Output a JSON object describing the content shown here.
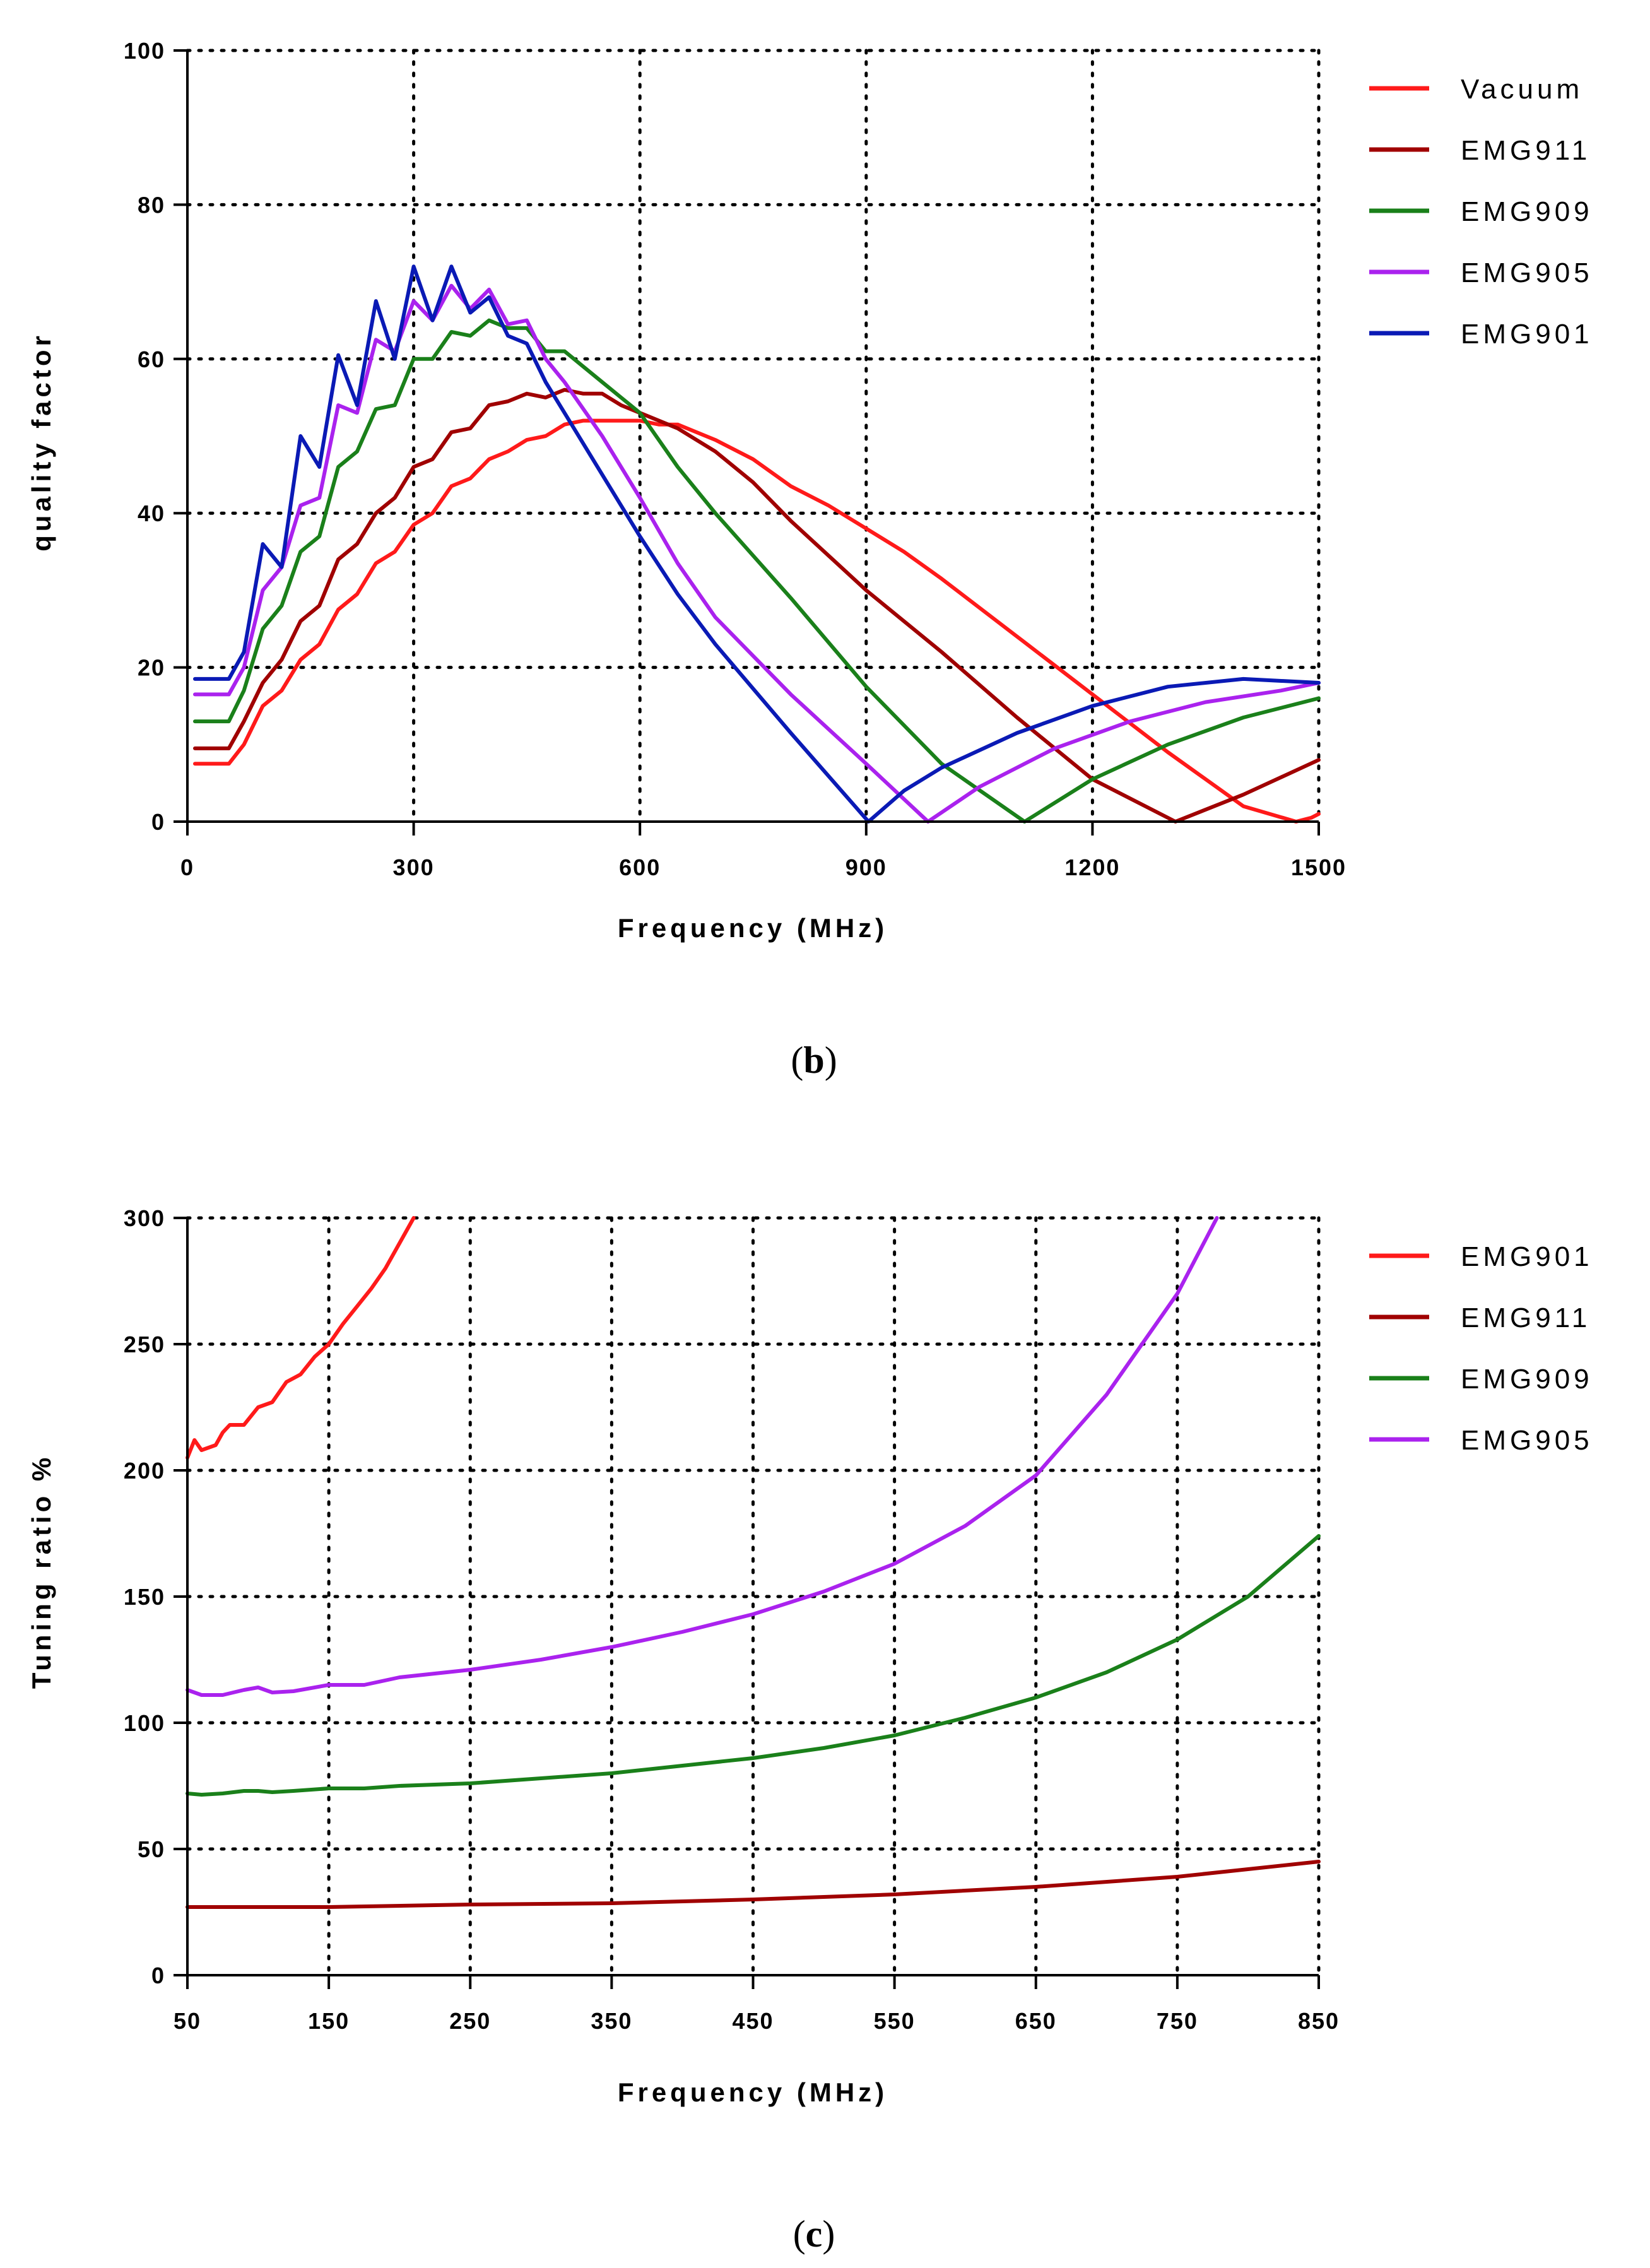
{
  "panels": [
    {
      "caption": {
        "open": "(",
        "letter": "b",
        "close": ")"
      },
      "chart_data": {
        "type": "line",
        "title": "",
        "xlabel": "Frequency (MHz)",
        "ylabel": "quality factor",
        "xlim": [
          0,
          1500
        ],
        "ylim": [
          0,
          100
        ],
        "xticks": [
          "0",
          "300",
          "600",
          "900",
          "1200",
          "1500"
        ],
        "yticks": [
          "0",
          "20",
          "40",
          "60",
          "80",
          "100"
        ],
        "grid": true,
        "legend_position": "right",
        "series": [
          {
            "name": "Vacuum",
            "color": "#ff1a1a",
            "x": [
              10,
              55,
              75,
              100,
              125,
              150,
              175,
              200,
              225,
              250,
              275,
              300,
              325,
              350,
              375,
              400,
              425,
              450,
              475,
              500,
              525,
              550,
              575,
              600,
              625,
              650,
              700,
              750,
              800,
              850,
              900,
              950,
              1000,
              1100,
              1200,
              1300,
              1400,
              1470,
              1490,
              1500
            ],
            "y": [
              7.5,
              7.5,
              10,
              15,
              17,
              21,
              23,
              27.5,
              29.5,
              33.5,
              35,
              38.5,
              40,
              43.5,
              44.5,
              47,
              48,
              49.5,
              50,
              51.5,
              52,
              52,
              52,
              52,
              51.5,
              51.5,
              49.5,
              47,
              43.5,
              41,
              38,
              35,
              31.5,
              24,
              16.5,
              9,
              2,
              0,
              0.5,
              1
            ]
          },
          {
            "name": "EMG911",
            "color": "#a00000",
            "x": [
              10,
              55,
              75,
              100,
              125,
              150,
              175,
              200,
              225,
              250,
              275,
              300,
              325,
              350,
              375,
              400,
              425,
              450,
              475,
              500,
              525,
              550,
              575,
              600,
              650,
              700,
              750,
              800,
              900,
              1000,
              1100,
              1200,
              1310,
              1400,
              1500
            ],
            "y": [
              9.5,
              9.5,
              13,
              18,
              21,
              26,
              28,
              34,
              36,
              40,
              42,
              46,
              47,
              50.5,
              51,
              54,
              54.5,
              55.5,
              55,
              56,
              55.5,
              55.5,
              54,
              53,
              51,
              48,
              44,
              39,
              30,
              22,
              13.5,
              5.5,
              0,
              3.5,
              8
            ]
          },
          {
            "name": "EMG909",
            "color": "#1a801a",
            "x": [
              10,
              55,
              75,
              100,
              125,
              150,
              175,
              200,
              225,
              250,
              275,
              300,
              325,
              350,
              375,
              400,
              425,
              450,
              475,
              500,
              525,
              550,
              575,
              600,
              650,
              700,
              800,
              900,
              1000,
              1110,
              1200,
              1300,
              1400,
              1500
            ],
            "y": [
              13,
              13,
              17,
              25,
              28,
              35,
              37,
              46,
              48,
              53.5,
              54,
              60,
              60,
              63.5,
              63,
              65,
              64,
              64,
              61,
              61,
              59,
              57,
              55,
              53,
              46,
              40,
              29,
              17.5,
              7.5,
              0,
              5.5,
              10,
              13.5,
              16
            ]
          },
          {
            "name": "EMG905",
            "color": "#aa22ee",
            "x": [
              10,
              55,
              75,
              100,
              125,
              150,
              175,
              200,
              225,
              250,
              275,
              300,
              325,
              350,
              375,
              400,
              425,
              450,
              475,
              500,
              550,
              600,
              650,
              700,
              800,
              900,
              982,
              1050,
              1150,
              1250,
              1350,
              1450,
              1500
            ],
            "y": [
              16.5,
              16.5,
              20,
              30,
              33,
              41,
              42,
              54,
              53,
              62.5,
              61,
              67.5,
              65,
              69.5,
              66.5,
              69,
              64.5,
              65,
              60,
              57,
              50,
              42,
              33.5,
              26.5,
              16.5,
              7.5,
              0,
              4.5,
              9.5,
              13,
              15.5,
              17,
              18
            ]
          },
          {
            "name": "EMG901",
            "color": "#0a1ab5",
            "x": [
              10,
              55,
              75,
              100,
              125,
              150,
              175,
              200,
              225,
              250,
              275,
              300,
              325,
              350,
              375,
              400,
              425,
              450,
              475,
              500,
              550,
              600,
              650,
              700,
              800,
              903,
              950,
              1000,
              1100,
              1200,
              1300,
              1400,
              1500
            ],
            "y": [
              18.5,
              18.5,
              22,
              36,
              33,
              50,
              46,
              60.5,
              54,
              67.5,
              60,
              72,
              65,
              72,
              66,
              68,
              63,
              62,
              57,
              53,
              45,
              37,
              29.5,
              23,
              11.5,
              0,
              4,
              7,
              11.5,
              15,
              17.5,
              18.5,
              18
            ]
          }
        ]
      }
    },
    {
      "caption": {
        "open": "(",
        "letter": "c",
        "close": ")"
      },
      "chart_data": {
        "type": "line",
        "title": "",
        "xlabel": "Frequency (MHz)",
        "ylabel": "Tuning ratio  %",
        "xlim": [
          50,
          850
        ],
        "ylim": [
          0,
          300
        ],
        "xticks": [
          "50",
          "150",
          "250",
          "350",
          "450",
          "550",
          "650",
          "750",
          "850"
        ],
        "yticks": [
          "0",
          "50",
          "100",
          "150",
          "200",
          "250",
          "300"
        ],
        "grid": true,
        "legend_position": "right",
        "series": [
          {
            "name": "EMG901",
            "color": "#ff1a1a",
            "x": [
              50,
              55,
              60,
              70,
              75,
              80,
              90,
              100,
              110,
              120,
              130,
              140,
              150,
              160,
              170,
              180,
              190,
              200,
              210
            ],
            "y": [
              205,
              212,
              208,
              210,
              215,
              218,
              218,
              225,
              227,
              235,
              238,
              245,
              250,
              258,
              265,
              272,
              280,
              290,
              300
            ]
          },
          {
            "name": "EMG911",
            "color": "#a00000",
            "x": [
              50,
              150,
              250,
              350,
              450,
              550,
              650,
              750,
              850
            ],
            "y": [
              27,
              27,
              28,
              28.5,
              30,
              32,
              35,
              39,
              45
            ]
          },
          {
            "name": "EMG909",
            "color": "#1a801a",
            "x": [
              50,
              60,
              75,
              90,
              100,
              110,
              125,
              150,
              175,
              200,
              250,
              300,
              350,
              400,
              450,
              500,
              550,
              600,
              650,
              700,
              750,
              800,
              850
            ],
            "y": [
              72,
              71.5,
              72,
              73,
              73,
              72.5,
              73,
              74,
              74,
              75,
              76,
              78,
              80,
              83,
              86,
              90,
              95,
              102,
              110,
              120,
              133,
              150,
              174
            ]
          },
          {
            "name": "EMG905",
            "color": "#aa22ee",
            "x": [
              50,
              60,
              75,
              90,
              100,
              110,
              125,
              150,
              175,
              200,
              250,
              300,
              350,
              400,
              450,
              500,
              550,
              600,
              650,
              700,
              750,
              778
            ],
            "y": [
              113,
              111,
              111,
              113,
              114,
              112,
              112.5,
              115,
              115,
              118,
              121,
              125,
              130,
              136,
              143,
              152,
              163,
              178,
              198,
              230,
              270,
              300
            ]
          }
        ]
      }
    }
  ]
}
